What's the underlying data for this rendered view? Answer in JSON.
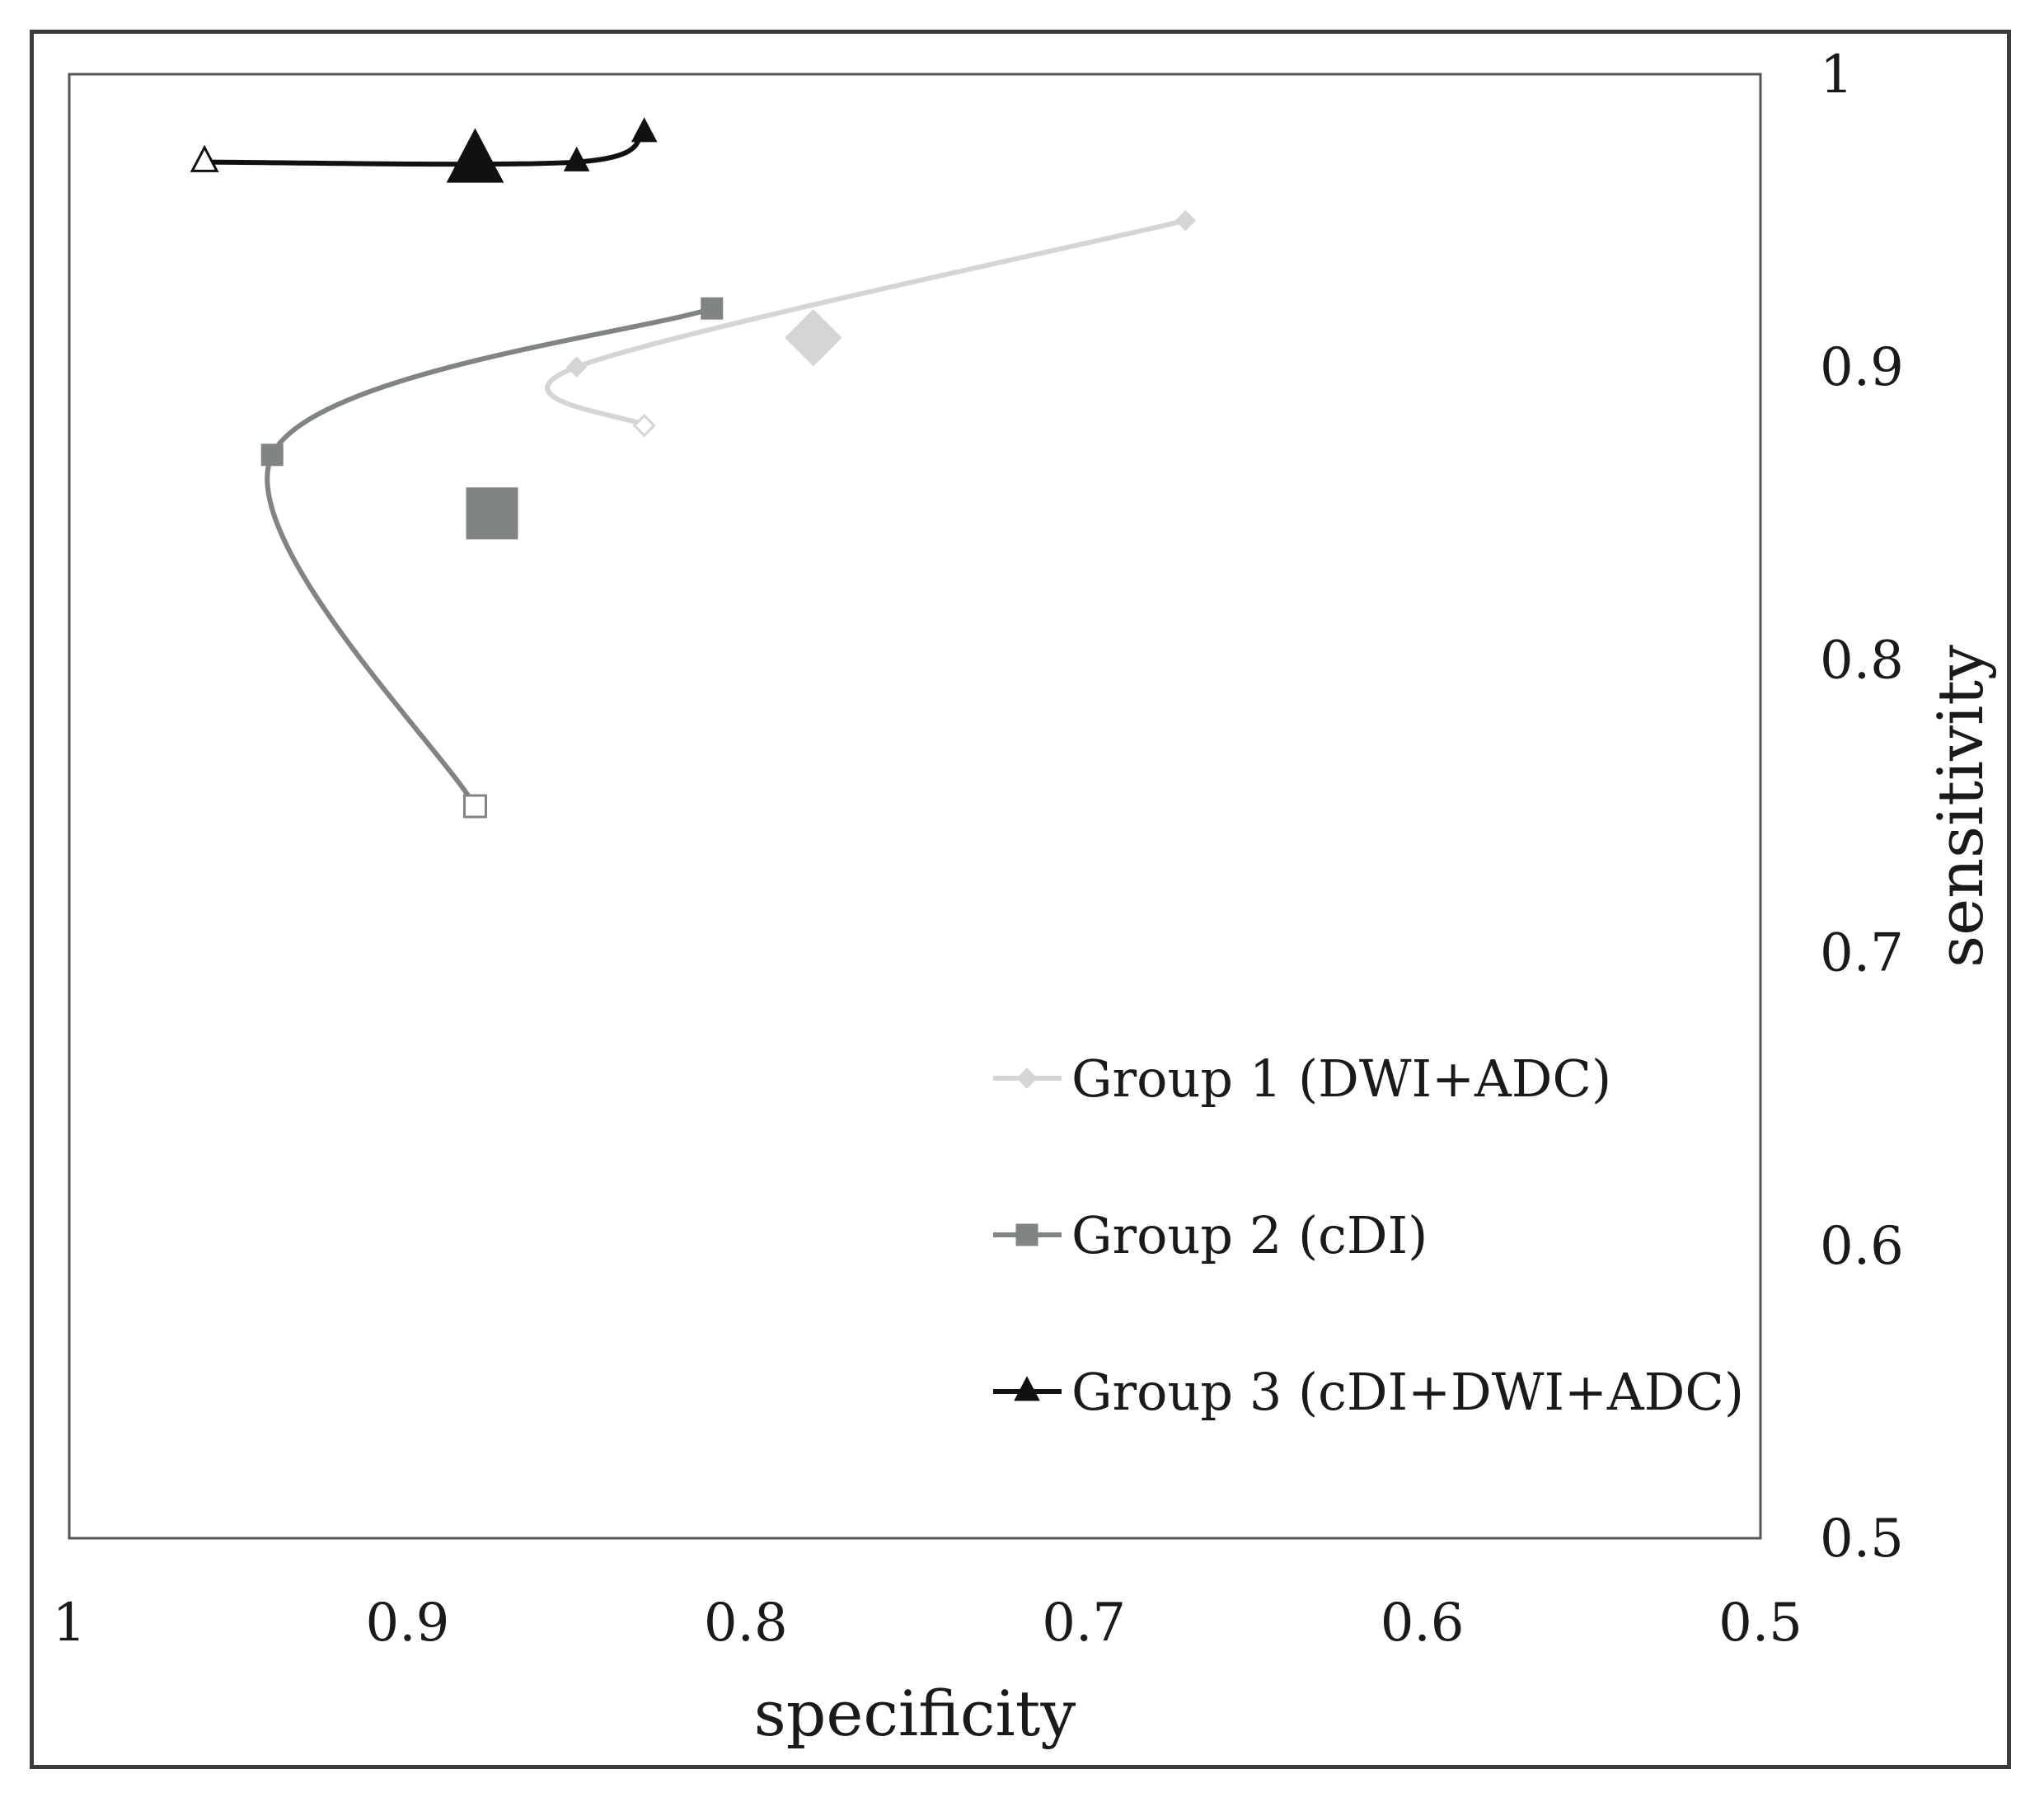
{
  "chart_data": {
    "type": "line",
    "xlabel": "specificity",
    "ylabel": "sensitivity",
    "xlim": [
      1,
      0.5
    ],
    "ylim": [
      0.5,
      1
    ],
    "x_reversed": true,
    "x_ticks": [
      "1",
      "0.9",
      "0.8",
      "0.7",
      "0.6",
      "0.5"
    ],
    "x_tick_values": [
      1,
      0.9,
      0.8,
      0.7,
      0.6,
      0.5
    ],
    "y_ticks": [
      "1",
      "0.9",
      "0.8",
      "0.7",
      "0.6",
      "0.5"
    ],
    "y_tick_values": [
      1,
      0.9,
      0.8,
      0.7,
      0.6,
      0.5
    ],
    "grid": false,
    "legend_position": "bottom-right",
    "series": [
      {
        "name": "Group 1 (DWI+ADC)",
        "color": "#d4d6d5",
        "marker": "diamond",
        "points": [
          {
            "x": 0.67,
            "y": 0.95
          },
          {
            "x": 0.85,
            "y": 0.9
          },
          {
            "x": 0.83,
            "y": 0.88
          }
        ],
        "summary_point": {
          "x": 0.78,
          "y": 0.91
        }
      },
      {
        "name": "Group 2 (cDI)",
        "color": "#808483",
        "marker": "square",
        "points": [
          {
            "x": 0.81,
            "y": 0.92
          },
          {
            "x": 0.94,
            "y": 0.87
          },
          {
            "x": 0.88,
            "y": 0.75
          }
        ],
        "summary_point": {
          "x": 0.875,
          "y": 0.85
        }
      },
      {
        "name": "Group 3 (cDI+DWI+ADC)",
        "color": "#111111",
        "marker": "triangle",
        "points": [
          {
            "x": 0.83,
            "y": 0.98
          },
          {
            "x": 0.85,
            "y": 0.97
          },
          {
            "x": 0.96,
            "y": 0.97
          }
        ],
        "summary_point": {
          "x": 0.88,
          "y": 0.97
        }
      }
    ]
  }
}
